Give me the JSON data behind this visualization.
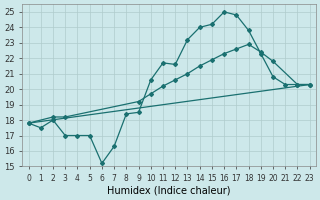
{
  "xlabel": "Humidex (Indice chaleur)",
  "xlim": [
    -0.5,
    23.5
  ],
  "ylim": [
    15,
    25.5
  ],
  "yticks": [
    15,
    16,
    17,
    18,
    19,
    20,
    21,
    22,
    23,
    24,
    25
  ],
  "xticks": [
    0,
    1,
    2,
    3,
    4,
    5,
    6,
    7,
    8,
    9,
    10,
    11,
    12,
    13,
    14,
    15,
    16,
    17,
    18,
    19,
    20,
    21,
    22,
    23
  ],
  "bg_color": "#cde8ea",
  "line_color": "#1a7070",
  "grid_color": "#b0cccc",
  "line1_x": [
    0,
    1,
    2,
    3,
    4,
    5,
    6,
    7,
    8,
    9,
    10,
    11,
    12,
    13,
    14,
    15,
    16,
    17,
    18,
    19,
    20,
    21,
    22,
    23
  ],
  "line1_y": [
    17.8,
    17.5,
    18.0,
    17.0,
    17.0,
    17.0,
    15.2,
    16.3,
    18.4,
    18.5,
    20.6,
    21.7,
    21.6,
    23.2,
    24.0,
    24.2,
    25.0,
    24.8,
    23.8,
    22.3,
    20.8,
    20.3,
    20.3,
    20.3
  ],
  "line2_x": [
    0,
    2,
    3,
    9,
    10,
    11,
    12,
    13,
    14,
    15,
    16,
    17,
    18,
    19,
    20,
    22,
    23
  ],
  "line2_y": [
    17.8,
    18.2,
    18.2,
    19.2,
    19.7,
    20.2,
    20.6,
    21.0,
    21.5,
    21.9,
    22.3,
    22.6,
    22.9,
    22.4,
    21.8,
    20.3,
    20.3
  ],
  "line3_x": [
    0,
    23
  ],
  "line3_y": [
    17.8,
    20.3
  ]
}
